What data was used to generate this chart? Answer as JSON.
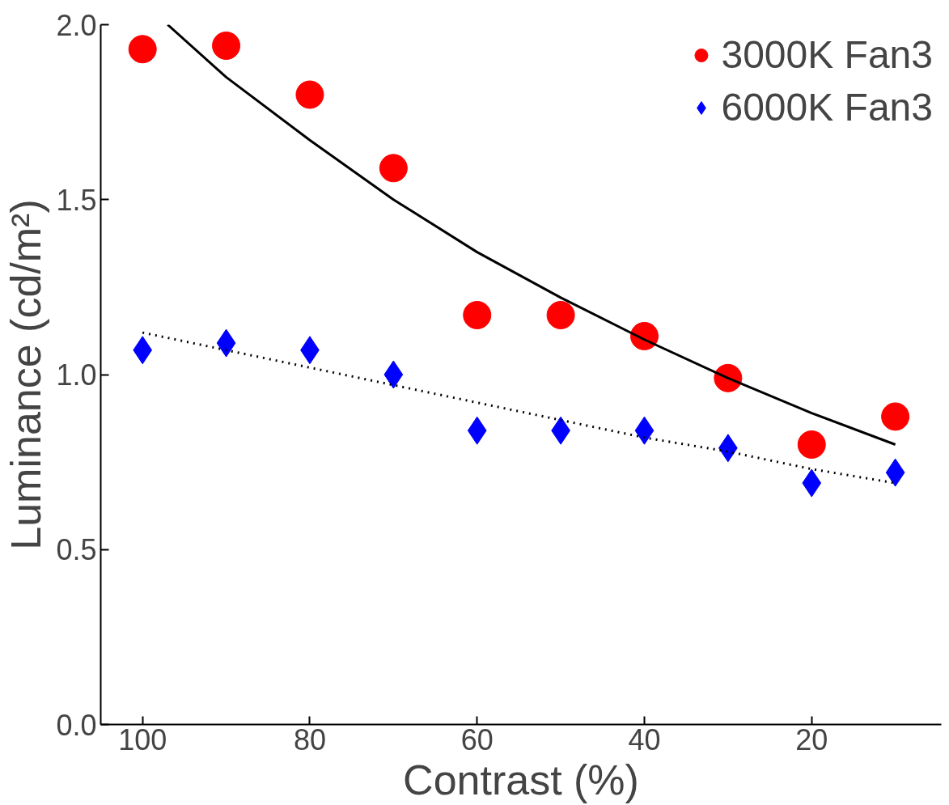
{
  "chart_data": {
    "type": "scatter",
    "xlabel": "Contrast (%)",
    "ylabel": "Luminance (cd/m²)",
    "xlim": [
      105,
      4.5
    ],
    "ylim": [
      0,
      2.0
    ],
    "xticks": [
      100,
      80,
      60,
      40,
      20
    ],
    "yticks": [
      {
        "value": 0,
        "label": "0.0"
      },
      {
        "value": 0.5,
        "label": "0.5"
      },
      {
        "value": 1.0,
        "label": "1.0"
      },
      {
        "value": 1.5,
        "label": "1.5"
      },
      {
        "value": 2.0,
        "label": "2.0"
      }
    ],
    "grid": false,
    "legend": "top right",
    "x": [
      100,
      90,
      80,
      70,
      60,
      50,
      40,
      30,
      20,
      10
    ],
    "series": [
      {
        "name": "3000K Fan3",
        "color": "#ff0000",
        "marker": "circle",
        "values": [
          1.93,
          1.94,
          1.8,
          1.59,
          1.17,
          1.17,
          1.11,
          0.99,
          0.8,
          0.88
        ]
      },
      {
        "name": "6000K Fan3",
        "color": "#0000ff",
        "marker": "diamond",
        "values": [
          1.07,
          1.09,
          1.07,
          1.0,
          0.84,
          0.84,
          0.84,
          0.79,
          0.69,
          0.72
        ]
      },
      {
        "type": "line",
        "color": "#000000",
        "line_style": "solid",
        "x": [
          97,
          90,
          80,
          70,
          60,
          50,
          40,
          30,
          20,
          10
        ],
        "values": [
          2.0,
          1.85,
          1.67,
          1.5,
          1.35,
          1.22,
          1.1,
          0.99,
          0.89,
          0.8
        ]
      },
      {
        "type": "line",
        "color": "#000000",
        "line_style": "dotted",
        "x": [
          100,
          90,
          80,
          70,
          60,
          50,
          40,
          30,
          20,
          10
        ],
        "values": [
          1.12,
          1.07,
          1.02,
          0.97,
          0.92,
          0.87,
          0.82,
          0.78,
          0.73,
          0.69
        ]
      }
    ]
  }
}
